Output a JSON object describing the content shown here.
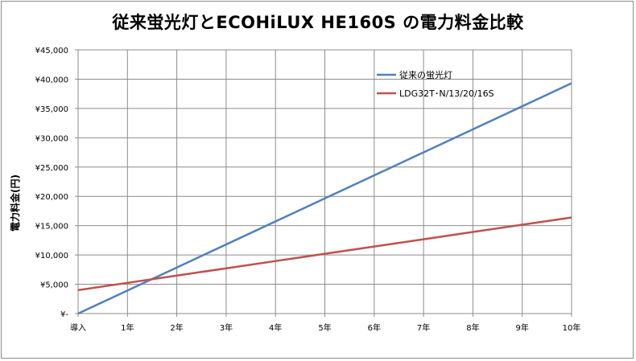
{
  "chart_data": {
    "type": "line",
    "title": "従来蛍光灯とECOHiLUX HE160S の電力料金比較",
    "ylabel": "電力料金(円)",
    "xlabel": "",
    "categories": [
      "導入",
      "1年",
      "2年",
      "3年",
      "4年",
      "5年",
      "6年",
      "7年",
      "8年",
      "9年",
      "10年"
    ],
    "y_tick_labels": [
      "¥-",
      "¥5,000",
      "¥10,000",
      "¥15,000",
      "¥20,000",
      "¥25,000",
      "¥30,000",
      "¥35,000",
      "¥40,000",
      "¥45,000"
    ],
    "ylim": [
      0,
      45000
    ],
    "grid": true,
    "legend_position": "top-right",
    "series": [
      {
        "name": "従来の蛍光灯",
        "color": "#4f81bd",
        "values": [
          0,
          3930,
          7860,
          11790,
          15720,
          19650,
          23580,
          27510,
          31440,
          35370,
          39300
        ]
      },
      {
        "name": "LDG32T･N/13/20/16S",
        "color": "#c0504d",
        "values": [
          4000,
          5240,
          6480,
          7720,
          8960,
          10200,
          11440,
          12680,
          13920,
          15160,
          16400
        ]
      }
    ]
  }
}
